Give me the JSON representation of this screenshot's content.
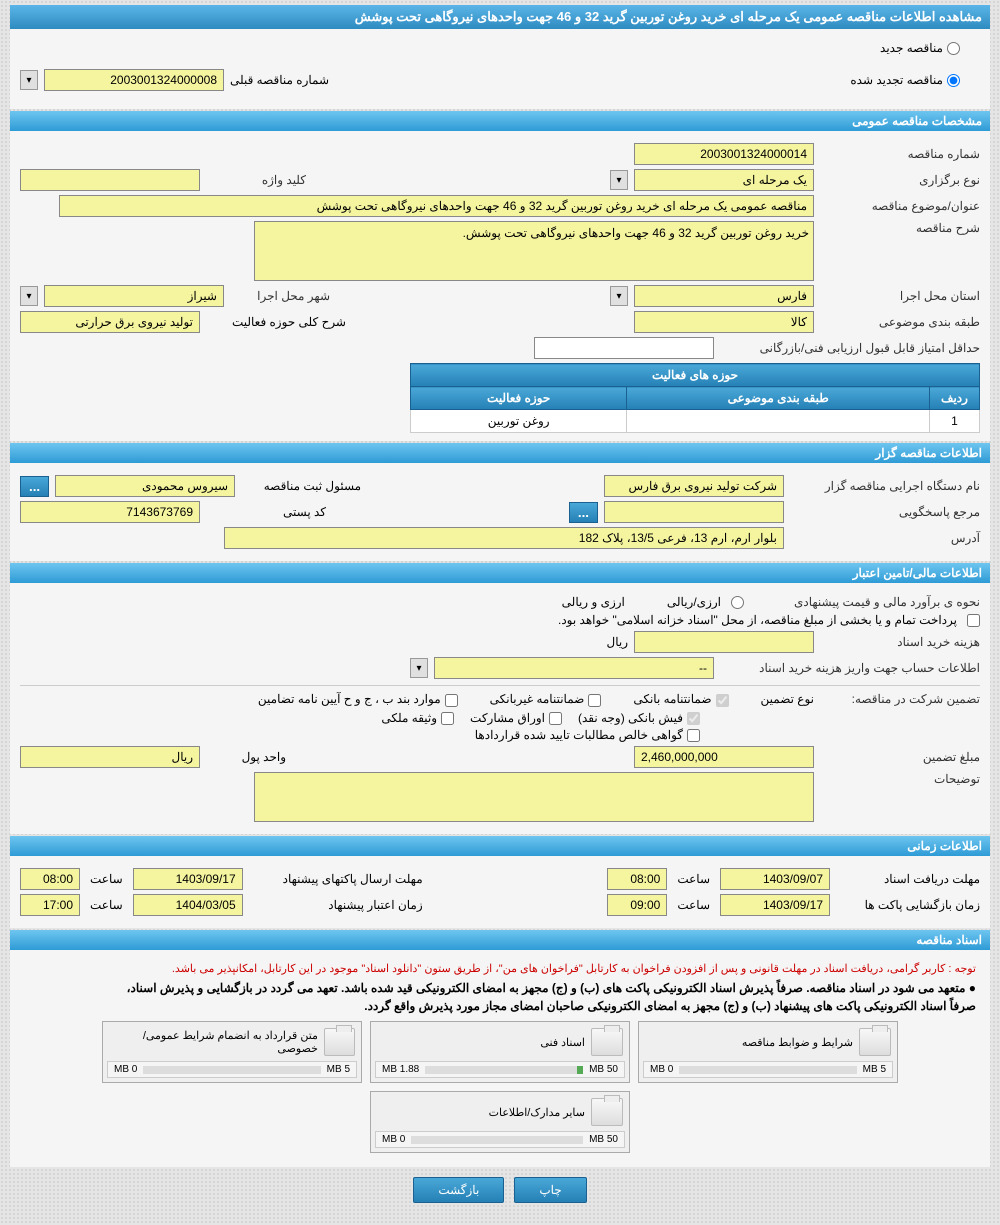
{
  "title": "مشاهده اطلاعات مناقصه عمومی یک مرحله ای خرید روغن توربین گرید 32 و 46 جهت واحدهای نیروگاهی تحت پوشش",
  "tender_status": {
    "new_label": "مناقصه جدید",
    "renewed_label": "مناقصه تجدید شده"
  },
  "prev_number": {
    "label": "شماره مناقصه قبلی",
    "value": "2003001324000008"
  },
  "sections": {
    "general": "مشخصات مناقصه عمومی",
    "holder": "اطلاعات مناقصه گزار",
    "financial": "اطلاعات مالی/تامین اعتبار",
    "time": "اطلاعات زمانی",
    "docs": "اسناد مناقصه"
  },
  "general_form": {
    "tender_no_label": "شماره مناقصه",
    "tender_no": "2003001324000014",
    "type_label": "نوع برگزاری",
    "type_value": "یک مرحله ای",
    "keyword_label": "کلید واژه",
    "keyword_value": "",
    "subject_label": "عنوان/موضوع مناقصه",
    "subject_value": "مناقصه عمومی یک مرحله ای خرید روغن توربین گرید 32 و 46 جهت واحدهای نیروگاهی تحت پوشش",
    "desc_label": "شرح مناقصه",
    "desc_value": "خرید روغن توربین گرید 32 و 46 جهت واحدهای نیروگاهی تحت پوشش.",
    "province_label": "استان محل اجرا",
    "province_value": "فارس",
    "city_label": "شهر محل اجرا",
    "city_value": "شیراز",
    "category_label": "طبقه بندی موضوعی",
    "category_value": "کالا",
    "activity_scope_label": "شرح کلی حوزه فعالیت",
    "activity_scope_value": "تولید نیروی برق حرارتی",
    "min_score_label": "حداقل امتیاز قابل قبول ارزیابی فنی/بازرگانی",
    "min_score_value": ""
  },
  "activity_table": {
    "header": "حوزه های فعالیت",
    "col_row": "ردیف",
    "col_category": "طبقه بندی موضوعی",
    "col_scope": "حوزه فعالیت",
    "rows": [
      {
        "idx": "1",
        "category": "",
        "scope": "روغن توربین"
      }
    ]
  },
  "holder_form": {
    "org_label": "نام دستگاه اجرایی مناقصه گزار",
    "org_value": "شرکت تولید نیروی برق فارس",
    "registrar_label": "مسئول ثبت مناقصه",
    "registrar_value": "سیروس محمودی",
    "response_label": "مرجع پاسخگویی",
    "response_value": "",
    "postal_label": "کد پستی",
    "postal_value": "7143673769",
    "address_label": "آدرس",
    "address_value": "بلوار ارم، ارم 13، فرعی 13/5، پلاک 182"
  },
  "financial_form": {
    "estimate_label": "نحوه ی برآورد مالی و قیمت پیشنهادی",
    "currency_label": "ارزی/ریالی",
    "currency_value": "ارزی و ریالی",
    "treasury_note": "پرداخت تمام و یا بخشی از مبلغ مناقصه، از محل \"اسناد خزانه اسلامی\" خواهد بود.",
    "doc_cost_label": "هزینه خرید اسناد",
    "doc_cost_value": "",
    "doc_cost_unit": "ریال",
    "account_label": "اطلاعات حساب جهت واریز هزینه خرید اسناد",
    "account_value": "--",
    "guarantee_intro": "تضمین شرکت در مناقصه:",
    "guarantee_type_label": "نوع تضمین",
    "g1": "ضمانتنامه بانکی",
    "g2": "ضمانتنامه غیربانکی",
    "g3": "موارد بند ب ، ج و ح آیین نامه تضامین",
    "g4": "فیش بانکی (وجه نقد)",
    "g5": "اوراق مشارکت",
    "g6": "وثیقه ملکی",
    "g7": "گواهی خالص مطالبات تایید شده قراردادها",
    "amount_label": "مبلغ تضمین",
    "amount_value": "2,460,000,000",
    "unit_label": "واحد پول",
    "unit_value": "ریال",
    "notes_label": "توضیحات",
    "notes_value": ""
  },
  "time_form": {
    "receive_label": "مهلت دریافت اسناد",
    "receive_date": "1403/09/07",
    "receive_time_label": "ساعت",
    "receive_time": "08:00",
    "send_label": "مهلت ارسال پاکتهای پیشنهاد",
    "send_date": "1403/09/17",
    "send_time_label": "ساعت",
    "send_time": "08:00",
    "open_label": "زمان بازگشایی پاکت ها",
    "open_date": "1403/09/17",
    "open_time_label": "ساعت",
    "open_time": "09:00",
    "validity_label": "زمان اعتبار پیشنهاد",
    "validity_date": "1404/03/05",
    "validity_time_label": "ساعت",
    "validity_time": "17:00"
  },
  "docs": {
    "note_red": "توجه : کاربر گرامی، دریافت اسناد در مهلت قانونی و پس از افزودن فراخوان به کارتابل \"فراخوان های من\"، از طریق ستون \"دانلود اسناد\" موجود در این کارتابل، امکانپذیر می باشد.",
    "note1": "● متعهد می شود در اسناد مناقصه. صرفاً پذیرش اسناد الکترونیکی پاکت های (ب) و (ج) مجهز به امضای الکترونیکی قید شده باشد. تعهد می گردد در بازگشایی و پذیرش اسناد،",
    "note2": "صرفاً اسناد الکترونیکی پاکت های پیشنهاد (ب) و (ج) مجهز به امضای الکترونیکی صاحبان امضای مجاز مورد پذیرش واقع گردد.",
    "cards": [
      {
        "title": "شرایط و ضوابط مناقصه",
        "used": "0 MB",
        "total": "5 MB",
        "pct": 0
      },
      {
        "title": "اسناد فنی",
        "used": "1.88 MB",
        "total": "50 MB",
        "pct": 4
      },
      {
        "title": "متن قرارداد به انضمام شرایط عمومی/خصوصی",
        "used": "0 MB",
        "total": "5 MB",
        "pct": 0
      },
      {
        "title": "سایر مدارک/اطلاعات",
        "used": "0 MB",
        "total": "50 MB",
        "pct": 0
      }
    ]
  },
  "buttons": {
    "print": "چاپ",
    "back": "بازگشت",
    "ellipsis": "..."
  },
  "colors": {
    "header_grad_top": "#5bb5e8",
    "header_grad_bottom": "#2e8bc0",
    "field_bg": "#f5f5a0",
    "page_bg": "#e5e5e5"
  }
}
